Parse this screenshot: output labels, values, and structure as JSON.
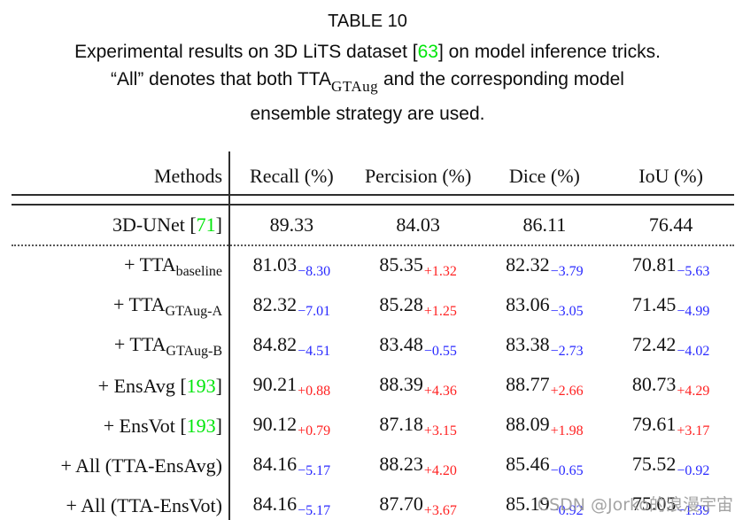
{
  "colors": {
    "text": "#111111",
    "ref_green": "#00e60a",
    "delta_positive": "#ff2222",
    "delta_negative": "#2a2aff",
    "rule": "#2e2e2e",
    "watermark": "#9a9a9a"
  },
  "caption": {
    "label": "TABLE 10",
    "line1": {
      "pre": "Experimental results on 3D LiTS dataset [",
      "ref": "63",
      "post": "] on model inference tricks."
    },
    "line2": {
      "pre": "“All” denotes that both TTA",
      "sub": "GTAug",
      "post": " and the corresponding model"
    },
    "line3": "ensemble strategy are used."
  },
  "table": {
    "headers": [
      "Methods",
      "Recall (%)",
      "Percision (%)",
      "Dice (%)",
      "IoU (%)"
    ],
    "baseline_row": {
      "label": [
        {
          "t": "text",
          "v": "3D-UNet ["
        },
        {
          "t": "ref",
          "v": "71"
        },
        {
          "t": "text",
          "v": "]"
        }
      ],
      "cells": [
        {
          "main": "89.33"
        },
        {
          "main": "84.03"
        },
        {
          "main": "86.11"
        },
        {
          "main": "76.44"
        }
      ]
    },
    "rows": [
      {
        "label": [
          {
            "t": "text",
            "v": "+ TTA"
          },
          {
            "t": "sub",
            "v": "baseline"
          }
        ],
        "cells": [
          {
            "main": "81.03",
            "delta": "−8.30"
          },
          {
            "main": "85.35",
            "delta": "+1.32"
          },
          {
            "main": "82.32",
            "delta": "−3.79"
          },
          {
            "main": "70.81",
            "delta": "−5.63"
          }
        ]
      },
      {
        "label": [
          {
            "t": "text",
            "v": "+ TTA"
          },
          {
            "t": "sub",
            "v": "GTAug-A"
          }
        ],
        "cells": [
          {
            "main": "82.32",
            "delta": "−7.01"
          },
          {
            "main": "85.28",
            "delta": "+1.25"
          },
          {
            "main": "83.06",
            "delta": "−3.05"
          },
          {
            "main": "71.45",
            "delta": "−4.99"
          }
        ]
      },
      {
        "label": [
          {
            "t": "text",
            "v": "+ TTA"
          },
          {
            "t": "sub",
            "v": "GTAug-B"
          }
        ],
        "cells": [
          {
            "main": "84.82",
            "delta": "−4.51"
          },
          {
            "main": "83.48",
            "delta": "−0.55"
          },
          {
            "main": "83.38",
            "delta": "−2.73"
          },
          {
            "main": "72.42",
            "delta": "−4.02"
          }
        ]
      },
      {
        "label": [
          {
            "t": "text",
            "v": "+ EnsAvg ["
          },
          {
            "t": "ref",
            "v": "193"
          },
          {
            "t": "text",
            "v": "]"
          }
        ],
        "cells": [
          {
            "main": "90.21",
            "delta": "+0.88"
          },
          {
            "main": "88.39",
            "delta": "+4.36"
          },
          {
            "main": "88.77",
            "delta": "+2.66"
          },
          {
            "main": "80.73",
            "delta": "+4.29"
          }
        ]
      },
      {
        "label": [
          {
            "t": "text",
            "v": "+ EnsVot ["
          },
          {
            "t": "ref",
            "v": "193"
          },
          {
            "t": "text",
            "v": "]"
          }
        ],
        "cells": [
          {
            "main": "90.12",
            "delta": "+0.79"
          },
          {
            "main": "87.18",
            "delta": "+3.15"
          },
          {
            "main": "88.09",
            "delta": "+1.98"
          },
          {
            "main": "79.61",
            "delta": "+3.17"
          }
        ]
      },
      {
        "label": [
          {
            "t": "text",
            "v": "+ All (TTA-EnsAvg)"
          }
        ],
        "cells": [
          {
            "main": "84.16",
            "delta": "−5.17"
          },
          {
            "main": "88.23",
            "delta": "+4.20"
          },
          {
            "main": "85.46",
            "delta": "−0.65"
          },
          {
            "main": "75.52",
            "delta": "−0.92"
          }
        ]
      },
      {
        "label": [
          {
            "t": "text",
            "v": "+ All (TTA-EnsVot)"
          }
        ],
        "cells": [
          {
            "main": "84.16",
            "delta": "−5.17"
          },
          {
            "main": "87.70",
            "delta": "+3.67"
          },
          {
            "main": "85.19",
            "delta": "−0.92"
          },
          {
            "main": "75.05",
            "delta": "−1.39"
          }
        ]
      }
    ]
  },
  "watermark": "CSDN @Jorko的浪漫宇宙"
}
